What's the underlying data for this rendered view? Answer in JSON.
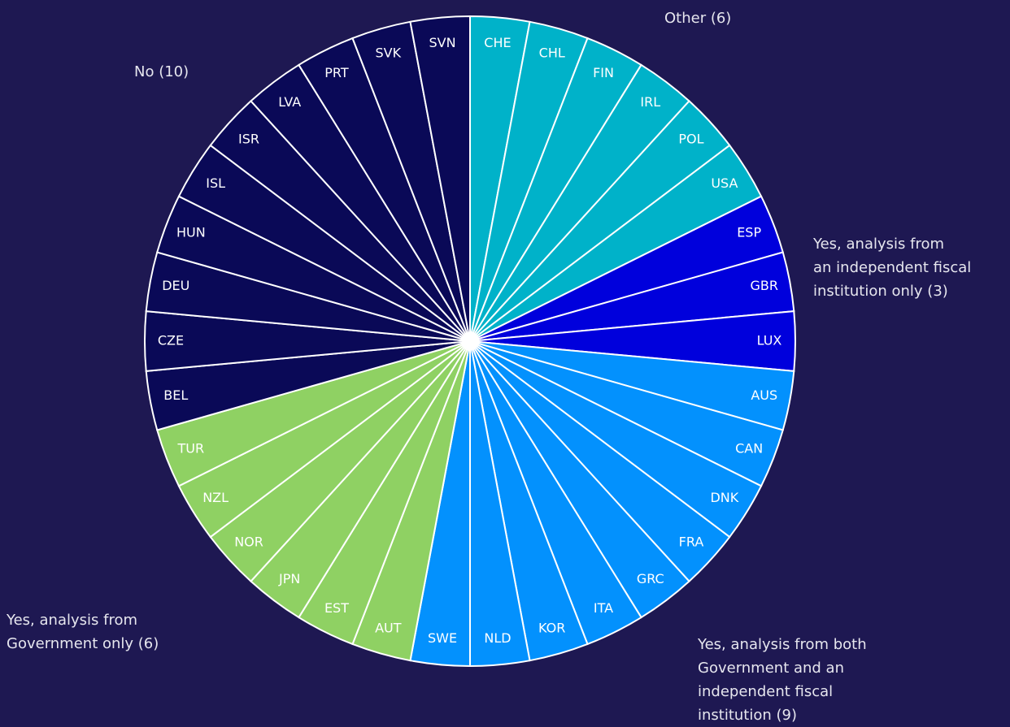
{
  "chart_data": {
    "type": "pie",
    "series": [
      {
        "name": "Other (6)",
        "color": "#00b2c9",
        "categories": [
          "CHE",
          "CHL",
          "FIN",
          "IRL",
          "POL",
          "USA"
        ],
        "values": [
          1,
          1,
          1,
          1,
          1,
          1
        ]
      },
      {
        "name": "Yes, analysis from\nan independent fiscal\ninstitution only (3)",
        "color": "#0000dc",
        "categories": [
          "ESP",
          "GBR",
          "LUX"
        ],
        "values": [
          1,
          1,
          1
        ]
      },
      {
        "name": "Yes, analysis from both\nGovernment and an\nindependent fiscal\ninstitution (9)",
        "color": "#0391fd",
        "categories": [
          "AUS",
          "CAN",
          "DNK",
          "FRA",
          "GRC",
          "ITA",
          "KOR",
          "NLD",
          "SWE"
        ],
        "values": [
          1,
          1,
          1,
          1,
          1,
          1,
          1,
          1,
          1
        ]
      },
      {
        "name": "Yes, analysis from\nGovernment only (6)",
        "color": "#8fd163",
        "categories": [
          "AUT",
          "EST",
          "JPN",
          "NOR",
          "NZL",
          "TUR"
        ],
        "values": [
          1,
          1,
          1,
          1,
          1,
          1
        ]
      },
      {
        "name": "No (10)",
        "color": "#0a0957",
        "categories": [
          "BEL",
          "CZE",
          "DEU",
          "HUN",
          "ISL",
          "ISR",
          "LVA",
          "PRT",
          "SVK",
          "SVN"
        ],
        "values": [
          1,
          1,
          1,
          1,
          1,
          1,
          1,
          1,
          1,
          1
        ]
      }
    ]
  }
}
